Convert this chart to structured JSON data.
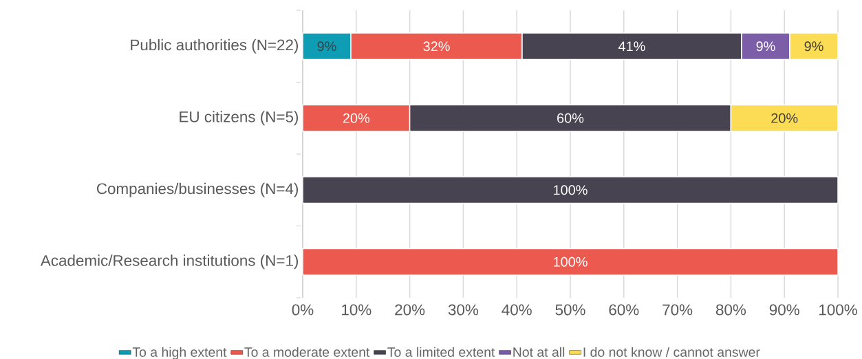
{
  "chart_data": {
    "type": "bar",
    "orientation": "horizontal",
    "stacked": true,
    "categories": [
      "Public authorities (N=22)",
      "EU citizens (N=5)",
      "Companies/businesses (N=4)",
      "Academic/Research institutions (N=1)"
    ],
    "series": [
      {
        "name": "To a high extent",
        "color": "#0f9db5",
        "values": [
          9,
          null,
          null,
          null
        ],
        "value_labels": [
          "9%",
          null,
          null,
          null
        ]
      },
      {
        "name": "To a moderate extent",
        "color": "#ec5a4f",
        "values": [
          32,
          20,
          null,
          100
        ],
        "value_labels": [
          "32%",
          "20%",
          null,
          "100%"
        ]
      },
      {
        "name": "To a limited extent",
        "color": "#474350",
        "values": [
          41,
          60,
          100,
          null
        ],
        "value_labels": [
          "41%",
          "60%",
          "100%",
          null
        ]
      },
      {
        "name": "Not at all",
        "color": "#7b5ea7",
        "values": [
          9,
          null,
          null,
          null
        ],
        "value_labels": [
          "9%",
          null,
          null,
          null
        ]
      },
      {
        "name": "I do not know / cannot answer",
        "color": "#fddc55",
        "values": [
          9,
          20,
          null,
          null
        ],
        "value_labels": [
          "9%",
          "20%",
          null,
          null
        ]
      }
    ],
    "xlim": [
      0,
      100
    ],
    "xticks": [
      {
        "value": 0,
        "label": "0%"
      },
      {
        "value": 10,
        "label": "10%"
      },
      {
        "value": 20,
        "label": "20%"
      },
      {
        "value": 30,
        "label": "30%"
      },
      {
        "value": 40,
        "label": "40%"
      },
      {
        "value": 50,
        "label": "50%"
      },
      {
        "value": 60,
        "label": "60%"
      },
      {
        "value": 70,
        "label": "70%"
      },
      {
        "value": 80,
        "label": "80%"
      },
      {
        "value": 90,
        "label": "90%"
      },
      {
        "value": 100,
        "label": "100%"
      }
    ],
    "grid": "x",
    "legend": "bottom"
  }
}
